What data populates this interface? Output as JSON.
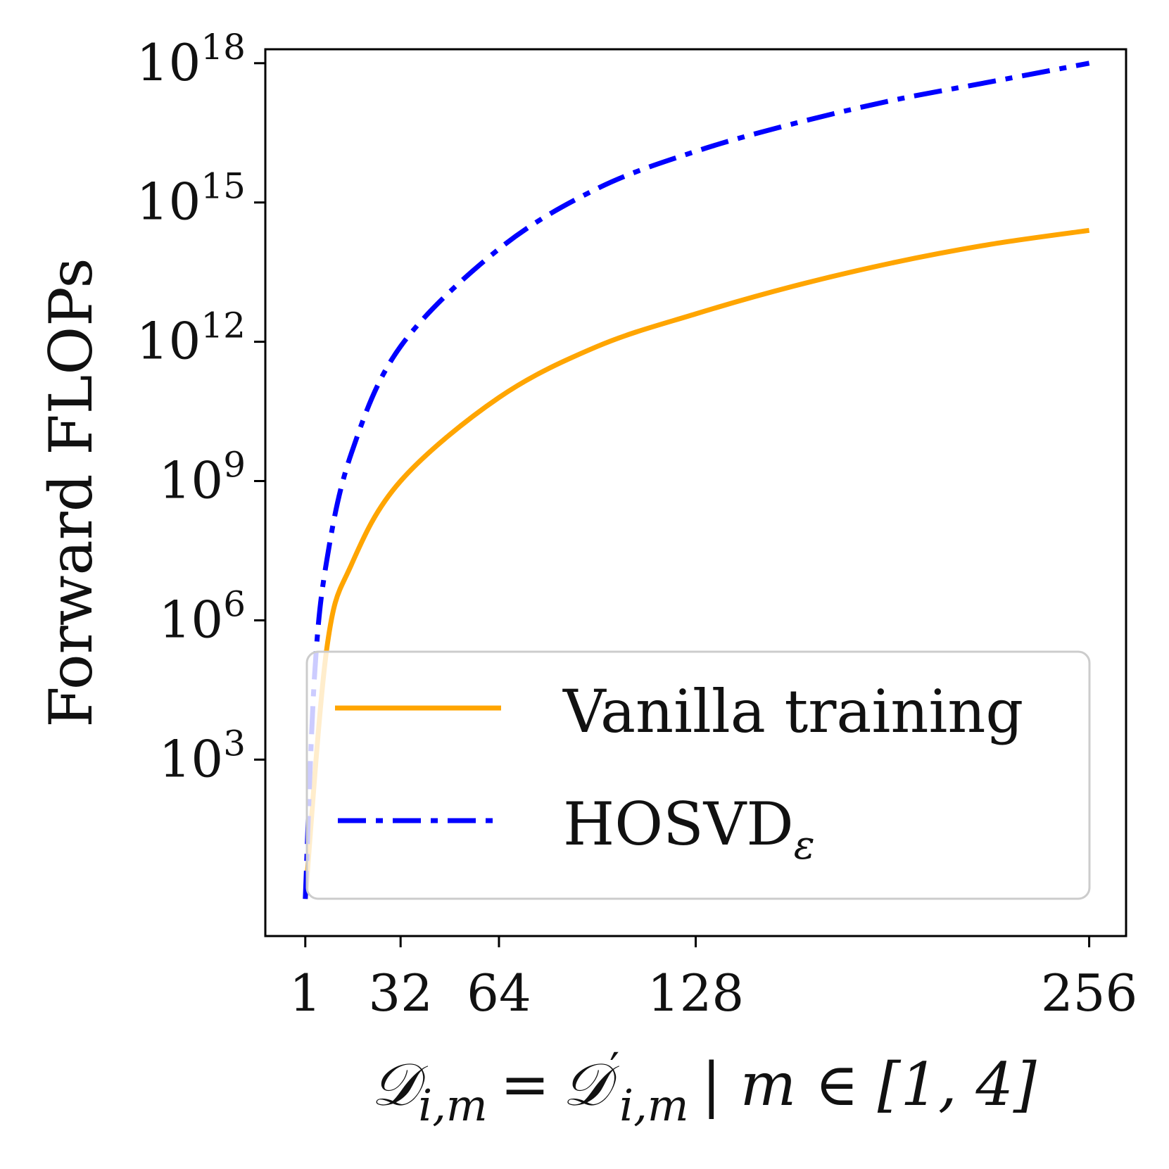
{
  "chart_data": {
    "type": "line",
    "xlabel": {
      "lhs": "𝒟",
      "lhs_sub": "i,m",
      "eq": "=",
      "rhs": "𝒟",
      "rhs_prime": "′",
      "rhs_sub": "i,m",
      "cond": "| m ∈ [1, 4]"
    },
    "ylabel": "Forward FLOPs",
    "x_ticks": [
      {
        "value": 1,
        "label": "1"
      },
      {
        "value": 32,
        "label": "32"
      },
      {
        "value": 64,
        "label": "64"
      },
      {
        "value": 128,
        "label": "128"
      },
      {
        "value": 256,
        "label": "256"
      }
    ],
    "y_scale": "log",
    "y_ticks": [
      {
        "exp": 3,
        "base": "10",
        "sup": "3"
      },
      {
        "exp": 6,
        "base": "10",
        "sup": "6"
      },
      {
        "exp": 9,
        "base": "10",
        "sup": "9"
      },
      {
        "exp": 12,
        "base": "10",
        "sup": "12"
      },
      {
        "exp": 15,
        "base": "10",
        "sup": "15"
      },
      {
        "exp": 18,
        "base": "10",
        "sup": "18"
      }
    ],
    "xlim": [
      -12,
      268
    ],
    "ylim_log10": [
      -0.8,
      18.3
    ],
    "series": [
      {
        "name": "Vanilla training",
        "style": "solid",
        "color": "#FFA500",
        "x": [
          1,
          8,
          16,
          32,
          64,
          96,
          128,
          160,
          192,
          224,
          256
        ],
        "log10_y": [
          0.0,
          5.4,
          7.2,
          9.0,
          10.8,
          11.9,
          12.6,
          13.2,
          13.7,
          14.1,
          14.4
        ]
      },
      {
        "name": "HOSVD",
        "name_sub": "ε",
        "style": "dashdot",
        "color": "#0000FF",
        "x": [
          1,
          4,
          8,
          16,
          32,
          64,
          96,
          128,
          160,
          192,
          224,
          256
        ],
        "log10_y": [
          0.0,
          4.8,
          7.3,
          9.6,
          11.9,
          14.0,
          15.3,
          16.1,
          16.7,
          17.2,
          17.6,
          18.0
        ]
      }
    ],
    "legend_position": "lower-right",
    "grid": false
  }
}
